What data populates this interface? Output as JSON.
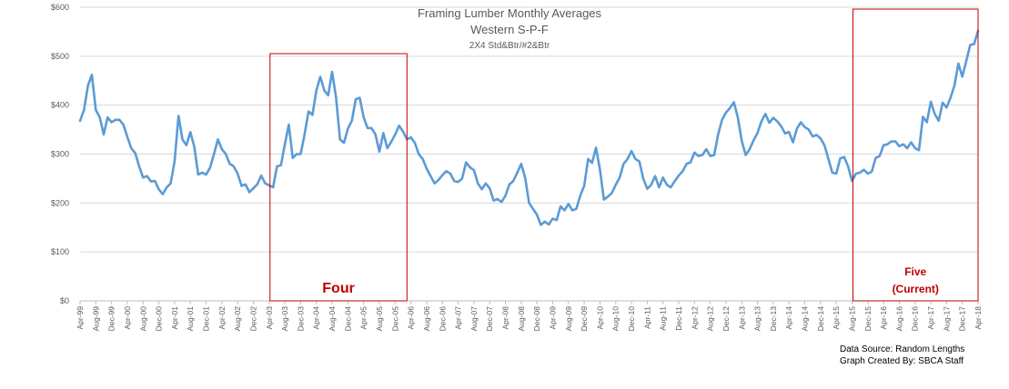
{
  "chart_data": {
    "type": "line",
    "title": "Framing Lumber Monthly Averages",
    "subtitle": "Western S-P-F",
    "subsubtitle": "2X4 Std&Btr/#2&Btr",
    "xlabel": "",
    "ylabel": "",
    "ylim": [
      0,
      600
    ],
    "yticks": [
      "$0",
      "$100",
      "$200",
      "$300",
      "$400",
      "$500",
      "$600"
    ],
    "ytick_values": [
      0,
      100,
      200,
      300,
      400,
      500,
      600
    ],
    "xlim": [
      "1999-04",
      "2018-04"
    ],
    "xtick_labels": [
      "Apr-99",
      "Aug-99",
      "Dec-99",
      "Apr-00",
      "Aug-00",
      "Dec-00",
      "Apr-01",
      "Aug-01",
      "Dec-01",
      "Apr-02",
      "Aug-02",
      "Dec-02",
      "Apr-03",
      "Aug-03",
      "Dec-03",
      "Apr-04",
      "Aug-04",
      "Dec-04",
      "Apr-05",
      "Aug-05",
      "Dec-05",
      "Apr-06",
      "Aug-06",
      "Dec-06",
      "Apr-07",
      "Aug-07",
      "Dec-07",
      "Apr-08",
      "Aug-08",
      "Dec-08",
      "Apr-09",
      "Aug-09",
      "Dec-09",
      "Apr-10",
      "Aug-10",
      "Dec-10",
      "Apr-11",
      "Aug-11",
      "Dec-11",
      "Apr-12",
      "Aug-12",
      "Dec-12",
      "Apr-13",
      "Aug-13",
      "Dec-13",
      "Apr-14",
      "Aug-14",
      "Dec-14",
      "Apr-15",
      "Aug-15",
      "Dec-15",
      "Apr-16",
      "Aug-16",
      "Dec-16",
      "Apr-17",
      "Aug-17",
      "Dec-17",
      "Apr-18"
    ],
    "grid": true,
    "series_color": "#5b9bd5",
    "highlight_color": "#c00000",
    "series": [
      {
        "values": [
          368,
          390,
          440,
          462,
          390,
          375,
          340,
          375,
          365,
          370,
          370,
          360,
          335,
          312,
          302,
          275,
          252,
          255,
          244,
          245,
          228,
          218,
          232,
          240,
          285,
          378,
          330,
          318,
          345,
          315,
          258,
          262,
          258,
          272,
          300,
          330,
          310,
          300,
          280,
          275,
          260,
          235,
          238,
          222,
          230,
          238,
          256,
          240,
          236,
          232,
          275,
          277,
          320,
          360,
          292,
          300,
          300,
          340,
          387,
          380,
          430,
          458,
          430,
          420,
          468,
          415,
          330,
          323,
          352,
          368,
          412,
          415,
          375,
          353,
          353,
          340,
          305,
          343,
          312,
          325,
          340,
          358,
          346,
          330,
          334,
          323,
          300,
          290,
          270,
          255,
          240,
          247,
          257,
          265,
          260,
          245,
          243,
          250,
          283,
          273,
          267,
          240,
          228,
          240,
          230,
          205,
          208,
          202,
          215,
          238,
          245,
          262,
          280,
          252,
          200,
          188,
          176,
          155,
          162,
          156,
          168,
          165,
          193,
          185,
          198,
          185,
          188,
          215,
          235,
          290,
          282,
          313,
          268,
          207,
          213,
          220,
          237,
          252,
          280,
          290,
          306,
          290,
          285,
          250,
          229,
          237,
          255,
          232,
          252,
          237,
          232,
          245,
          256,
          265,
          280,
          283,
          303,
          296,
          298,
          310,
          296,
          298,
          340,
          370,
          385,
          394,
          406,
          375,
          327,
          298,
          310,
          328,
          343,
          367,
          382,
          364,
          374,
          367,
          357,
          342,
          345,
          324,
          352,
          365,
          355,
          350,
          336,
          339,
          332,
          318,
          290,
          262,
          260,
          291,
          294,
          275,
          245,
          260,
          262,
          268,
          260,
          264,
          292,
          296,
          318,
          320,
          326,
          326,
          316,
          320,
          312,
          324,
          312,
          308,
          376,
          365,
          407,
          382,
          368,
          405,
          395,
          415,
          440,
          485,
          458,
          490,
          523,
          525,
          552
        ]
      }
    ],
    "highlight_regions": [
      {
        "label_lines": [
          "Four"
        ],
        "start": "2003-04",
        "end": "2006-03"
      },
      {
        "label_lines": [
          "Five",
          "(Current)"
        ],
        "start": "2015-08",
        "end": "2018-04"
      }
    ],
    "annotations": [
      "Data Source: Random Lengths",
      "Graph Created By: SBCA Staff"
    ]
  }
}
